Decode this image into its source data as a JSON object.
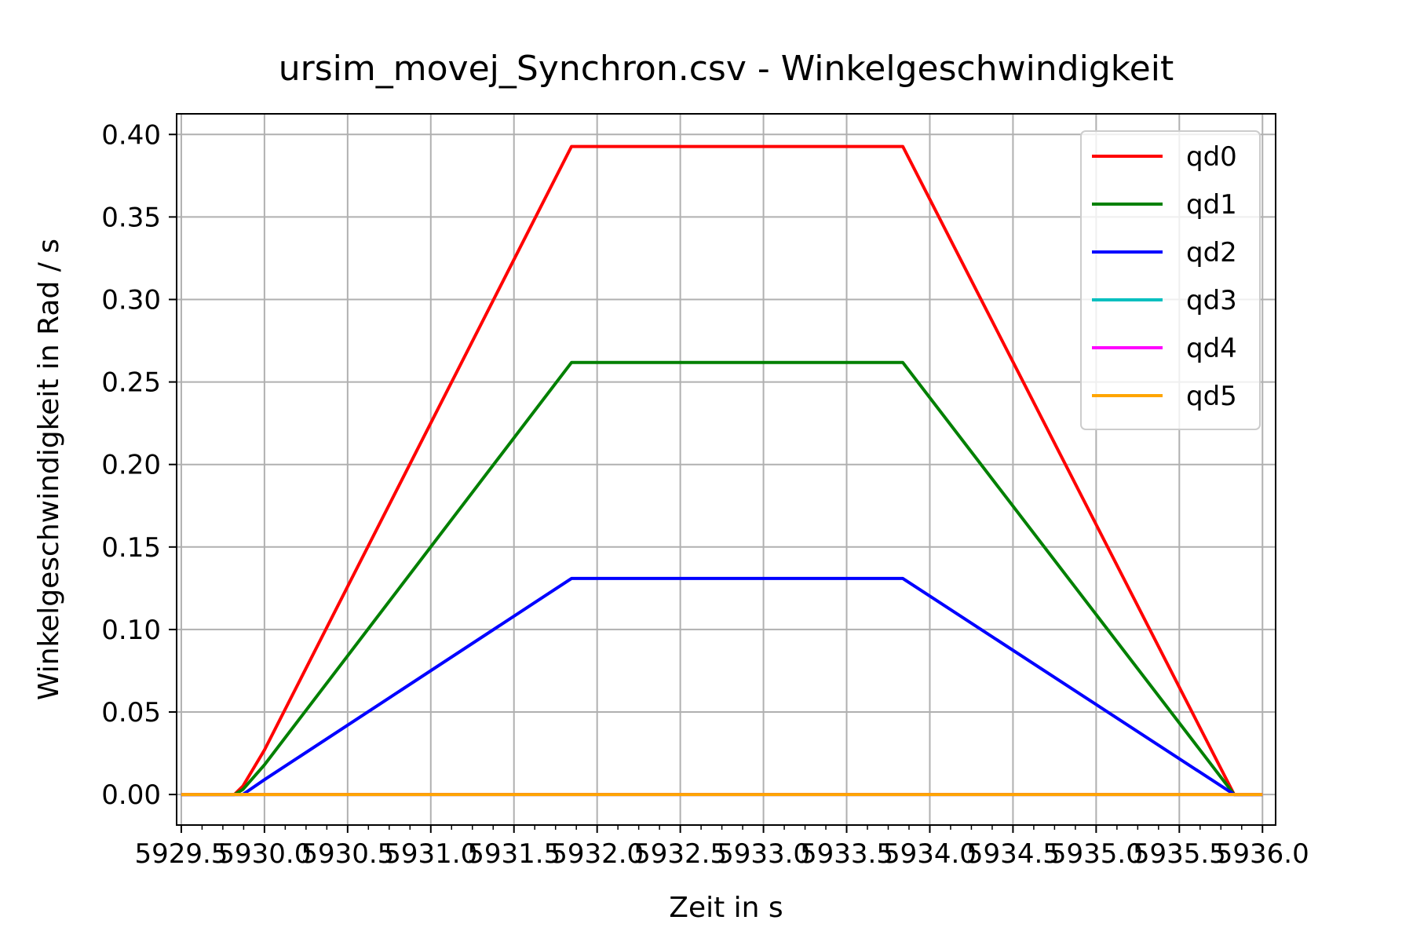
{
  "chart_data": {
    "type": "line",
    "title": "ursim_movej_Synchron.csv - Winkelgeschwindigkeit",
    "xlabel": "Zeit in s",
    "ylabel": "Winkelgeschwindigkeit in Rad / s",
    "xlim": [
      5929.472,
      5936.079
    ],
    "ylim": [
      -0.0185,
      0.4125
    ],
    "grid": true,
    "legend_position": "upper right",
    "x_ticks": [
      5929.5,
      5930.0,
      5930.5,
      5931.0,
      5931.5,
      5932.0,
      5932.5,
      5933.0,
      5933.5,
      5934.0,
      5934.5,
      5935.0,
      5935.5,
      5936.0
    ],
    "x_tick_labels": [
      "5929.5",
      "5930.0",
      "5930.5",
      "5931.0",
      "5931.5",
      "5932.0",
      "5932.5",
      "5933.0",
      "5933.5",
      "5934.0",
      "5934.5",
      "5935.0",
      "5935.5",
      "5936.0"
    ],
    "y_ticks": [
      0.0,
      0.05,
      0.1,
      0.15,
      0.2,
      0.25,
      0.3,
      0.35,
      0.4
    ],
    "y_tick_labels": [
      "0.00",
      "0.05",
      "0.10",
      "0.15",
      "0.20",
      "0.25",
      "0.30",
      "0.35",
      "0.40"
    ],
    "series": [
      {
        "name": "qd0",
        "color": "#ff0000",
        "x": [
          5929.5,
          5929.82,
          5929.87,
          5930.0,
          5931.846,
          5933.838,
          5935.83,
          5936.0
        ],
        "y": [
          0.0,
          0.0,
          0.005,
          0.027,
          0.3927,
          0.3927,
          0.0,
          0.0
        ]
      },
      {
        "name": "qd1",
        "color": "#008000",
        "x": [
          5929.5,
          5929.82,
          5929.87,
          5930.0,
          5931.846,
          5933.838,
          5935.83,
          5936.0
        ],
        "y": [
          0.0,
          0.0,
          0.003,
          0.018,
          0.2618,
          0.2618,
          0.0,
          0.0
        ]
      },
      {
        "name": "qd2",
        "color": "#0000ff",
        "x": [
          5929.5,
          5929.87,
          5930.0,
          5931.846,
          5933.838,
          5935.83,
          5936.0
        ],
        "y": [
          0.0,
          0.0,
          0.009,
          0.1309,
          0.1309,
          0.0,
          0.0
        ]
      },
      {
        "name": "qd3",
        "color": "#00bfbf",
        "x": [
          5929.5,
          5936.0
        ],
        "y": [
          0.0,
          0.0
        ]
      },
      {
        "name": "qd4",
        "color": "#ff00ff",
        "x": [
          5929.5,
          5936.0
        ],
        "y": [
          0.0,
          0.0
        ]
      },
      {
        "name": "qd5",
        "color": "#ffa500",
        "x": [
          5929.5,
          5936.0
        ],
        "y": [
          0.0,
          0.0
        ]
      }
    ]
  }
}
